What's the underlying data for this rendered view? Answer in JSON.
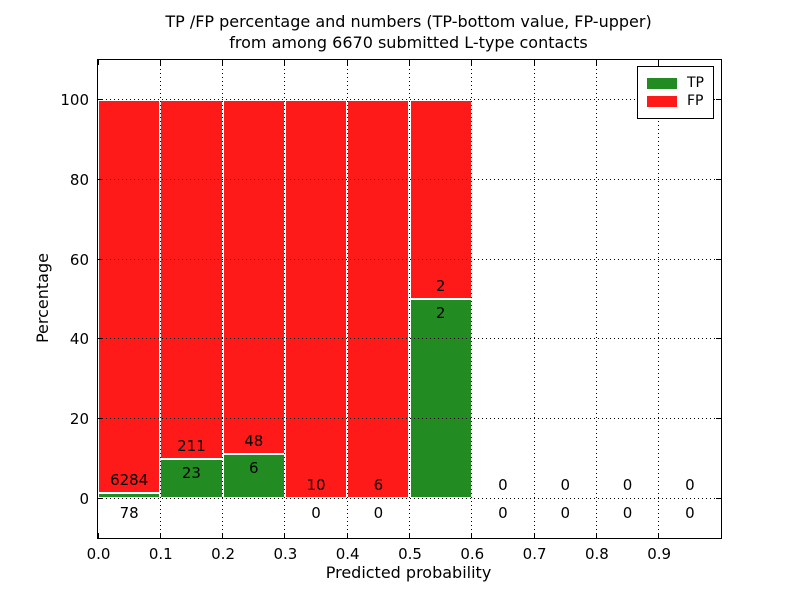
{
  "title": {
    "line1": "TP /FP percentage and numbers (TP-bottom value, FP-upper)",
    "line2": "from among 6670 submitted L-type contacts"
  },
  "chart_data": {
    "type": "bar",
    "stacked": true,
    "title": "TP /FP percentage and numbers (TP-bottom value, FP-upper) from among 6670 submitted L-type contacts",
    "xlabel": "Predicted probability",
    "ylabel": "Percentage",
    "xlim": [
      0.0,
      1.0
    ],
    "ylim": [
      -10,
      110
    ],
    "y_ticks": [
      0,
      20,
      40,
      60,
      80,
      100
    ],
    "x_ticks": [
      {
        "value": 0.0,
        "label": "0.0"
      },
      {
        "value": 0.1,
        "label": "0.1"
      },
      {
        "value": 0.2,
        "label": "0.2"
      },
      {
        "value": 0.3,
        "label": "0.3"
      },
      {
        "value": 0.4,
        "label": "0.4"
      },
      {
        "value": 0.5,
        "label": "0.5"
      },
      {
        "value": 0.6,
        "label": "0.6"
      },
      {
        "value": 0.7,
        "label": "0.7"
      },
      {
        "value": 0.8,
        "label": "0.8"
      },
      {
        "value": 0.9,
        "label": "0.9"
      }
    ],
    "grid": "dotted, both axes",
    "legend": {
      "position": "upper right",
      "entries": [
        {
          "name": "TP",
          "label": "TP",
          "color": "#228b22"
        },
        {
          "name": "FP",
          "label": "FP",
          "color": "#ff1a1a"
        }
      ]
    },
    "bar_semantics": "Each 0.1-wide bin shows TP% (green, bottom) and FP% (red, top) of the bin total; annotated numbers are raw counts (TP-bottom value, FP-upper).",
    "total_submitted": 6670,
    "bins": [
      {
        "range": [
          0.0,
          0.1
        ],
        "tp": 78,
        "fp": 6284
      },
      {
        "range": [
          0.1,
          0.2
        ],
        "tp": 23,
        "fp": 211
      },
      {
        "range": [
          0.2,
          0.3
        ],
        "tp": 6,
        "fp": 48
      },
      {
        "range": [
          0.3,
          0.4
        ],
        "tp": 0,
        "fp": 10
      },
      {
        "range": [
          0.4,
          0.5
        ],
        "tp": 0,
        "fp": 6
      },
      {
        "range": [
          0.5,
          0.6
        ],
        "tp": 2,
        "fp": 2
      },
      {
        "range": [
          0.6,
          0.7
        ],
        "tp": 0,
        "fp": 0
      },
      {
        "range": [
          0.7,
          0.8
        ],
        "tp": 0,
        "fp": 0
      },
      {
        "range": [
          0.8,
          0.9
        ],
        "tp": 0,
        "fp": 0
      },
      {
        "range": [
          0.9,
          1.0
        ],
        "tp": 0,
        "fp": 0
      }
    ]
  },
  "colors": {
    "tp": "#228b22",
    "fp": "#ff1a1a",
    "frame": "#000000",
    "grid": "#000000",
    "background": "#ffffff"
  }
}
